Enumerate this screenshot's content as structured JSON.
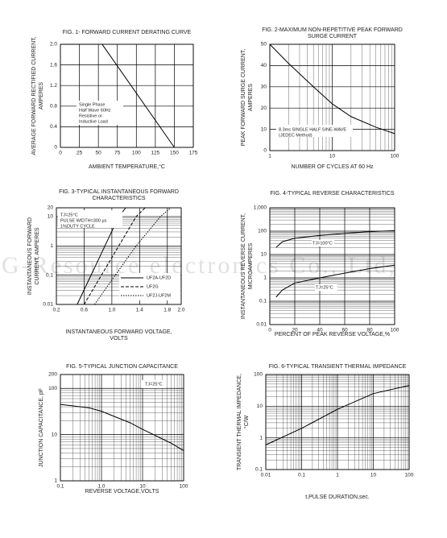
{
  "watermark": "G-Resource electronics Co., Ltd,",
  "chart_data": [
    {
      "type": "line",
      "title": [
        "FIG. 1- FORWARD CURRENT DERATING CURVE"
      ],
      "xlabel": [
        "AMBIENT TEMPERATURE,°C"
      ],
      "ylabel": [
        "AVERAGE FORWARD RECTIFIED CURRENT,",
        "AMPERES"
      ],
      "xlim": [
        0,
        175
      ],
      "xticks": [
        0,
        25,
        50,
        75,
        100,
        125,
        150,
        175
      ],
      "ylim": [
        0,
        2
      ],
      "yticks": [
        0,
        0.4,
        0.8,
        1.2,
        1.6,
        {
          "value": 2,
          "label": "2.0"
        }
      ],
      "xscale": "linear",
      "yscale": "linear",
      "grid": true,
      "annotation": [
        "Single Phase",
        "Half Wave 60Hz",
        "Resistive or",
        "Inductive Load"
      ],
      "series": [
        {
          "color": "#000000",
          "dash": "solid",
          "x": [
            0,
            55,
            150
          ],
          "values": [
            2,
            2,
            0
          ]
        }
      ]
    },
    {
      "type": "line",
      "title": [
        "FIG. 2-MAXIMUM NON-REPETITIVE PEAK FORWARD",
        "SURGE CURRENT"
      ],
      "xlabel": [
        "NUMBER OF CYCLES AT 60 Hz"
      ],
      "ylabel": [
        "PEAK  FORWARD SURGE CURRENT,",
        "AMPERES"
      ],
      "xlim": [
        1,
        100
      ],
      "xticks": [
        1,
        10,
        100
      ],
      "ylim": [
        0,
        50
      ],
      "yticks": [
        0,
        10,
        20,
        30,
        40,
        50
      ],
      "xscale": "log",
      "yscale": "linear",
      "grid": true,
      "annotation": [
        "8.3ms SINGLE HALF SINE-WAVE",
        "(JEDEC Method)"
      ],
      "series": [
        {
          "color": "#000000",
          "dash": "solid",
          "x": [
            1,
            2,
            5,
            10,
            20,
            50,
            100
          ],
          "values": [
            50,
            41,
            30,
            22,
            16,
            11,
            8
          ]
        }
      ]
    },
    {
      "type": "line",
      "title": [
        "FIG. 3-TYPICAL INSTANTANEOUS FORWARD",
        "CHARACTERISTICS"
      ],
      "xlabel": [
        "INSTANTANEOUS FORWARD VOLTAGE,",
        "VOLTS"
      ],
      "ylabel": [
        "INSTANTANEOUS FORWARD",
        "CURRENT, AMPERES"
      ],
      "xlim": [
        0.2,
        2
      ],
      "xticks": [
        0.2,
        0.6,
        {
          "value": 1,
          "label": "1.0"
        },
        1.4,
        1.8,
        {
          "value": 2,
          "label": "2.0"
        }
      ],
      "ylim": [
        0.01,
        20
      ],
      "yticks": [
        0.01,
        0.1,
        1,
        10,
        20
      ],
      "xscale": "linear",
      "yscale": "log",
      "grid": true,
      "annotation": [
        "TJ=25°C",
        "PULSE WIDTH=300 µs",
        "1%DUTY CYCLE"
      ],
      "series": [
        {
          "name": "UF2A-UF2D",
          "color": "#000000",
          "dash": "solid",
          "x": [
            0.5,
            0.7,
            0.9,
            1.1,
            1.2
          ],
          "values": [
            0.01,
            0.1,
            1,
            10,
            20
          ]
        },
        {
          "name": "UF2G",
          "color": "#000000",
          "dash": "dashed",
          "x": [
            0.6,
            0.85,
            1.1,
            1.35,
            1.48
          ],
          "values": [
            0.01,
            0.1,
            1,
            10,
            20
          ]
        },
        {
          "name": "UF2J-UF2M",
          "color": "#000000",
          "dash": "dotted",
          "x": [
            0.75,
            1.05,
            1.35,
            1.7,
            1.85
          ],
          "values": [
            0.01,
            0.1,
            1,
            10,
            20
          ]
        }
      ]
    },
    {
      "type": "line",
      "title": [
        "FIG. 4-TYPICAL REVERSE CHARACTERISTICS"
      ],
      "xlabel": [
        "PERCENT OF PEAK REVERSE VOLTAGE,%"
      ],
      "ylabel": [
        "INSTANTANEOUS REVERSE CURRENT,",
        "MICROAMPERES"
      ],
      "xlim": [
        0,
        100
      ],
      "xticks": [
        0,
        20,
        40,
        60,
        80,
        100
      ],
      "ylim": [
        0.01,
        1000
      ],
      "yticks": [
        0.01,
        0.1,
        1,
        10,
        100,
        {
          "value": 1000,
          "label": "1,000"
        }
      ],
      "xscale": "linear",
      "yscale": "log",
      "grid": true,
      "series": [
        {
          "name": "TJ=100°C",
          "color": "#000000",
          "dash": "solid",
          "x": [
            5,
            10,
            20,
            40,
            60,
            80,
            100
          ],
          "values": [
            20,
            35,
            50,
            65,
            80,
            95,
            105
          ]
        },
        {
          "name": "TJ=25°C",
          "color": "#000000",
          "dash": "solid",
          "x": [
            5,
            10,
            20,
            40,
            60,
            80,
            100
          ],
          "values": [
            0.15,
            0.3,
            0.6,
            1,
            1.6,
            2.5,
            3.5
          ]
        }
      ]
    },
    {
      "type": "line",
      "title": [
        "FIG. 5-TYPICAL JUNCTION CAPACITANCE"
      ],
      "xlabel": [
        "REVERSE VOLTAGE,VOLTS"
      ],
      "ylabel": [
        "JUNCTION CAPACITANCE, pF"
      ],
      "xlim": [
        0.1,
        100
      ],
      "xticks": [
        0.1,
        {
          "value": 1,
          "label": "1.0"
        },
        10,
        100
      ],
      "ylim": [
        1,
        200
      ],
      "yticks": [
        1,
        10,
        100,
        200
      ],
      "xscale": "log",
      "yscale": "log",
      "grid": true,
      "annotation": [
        "TJ=25°C"
      ],
      "series": [
        {
          "color": "#000000",
          "dash": "solid",
          "x": [
            0.1,
            0.5,
            1,
            5,
            10,
            50,
            100
          ],
          "values": [
            45,
            38,
            32,
            18,
            13,
            6.5,
            4.5
          ]
        }
      ]
    },
    {
      "type": "line",
      "title": [
        "FIG. 6-TYPICAL TRANSIENT THERMAL IMPEDANCE"
      ],
      "xlabel": [
        "t,PULSE DURATION,sec."
      ],
      "ylabel": [
        "TRANSIENT THERMAL IMPEDANCE,",
        "°C/W"
      ],
      "xlim": [
        0.01,
        100
      ],
      "xticks": [
        0.01,
        0.1,
        1,
        10,
        100
      ],
      "ylim": [
        0.1,
        100
      ],
      "yticks": [
        0.1,
        1,
        10,
        100
      ],
      "xscale": "log",
      "yscale": "log",
      "grid": true,
      "series": [
        {
          "color": "#000000",
          "dash": "solid",
          "x": [
            0.01,
            0.1,
            1,
            10,
            100
          ],
          "values": [
            0.6,
            2,
            8,
            25,
            45
          ]
        }
      ]
    }
  ]
}
